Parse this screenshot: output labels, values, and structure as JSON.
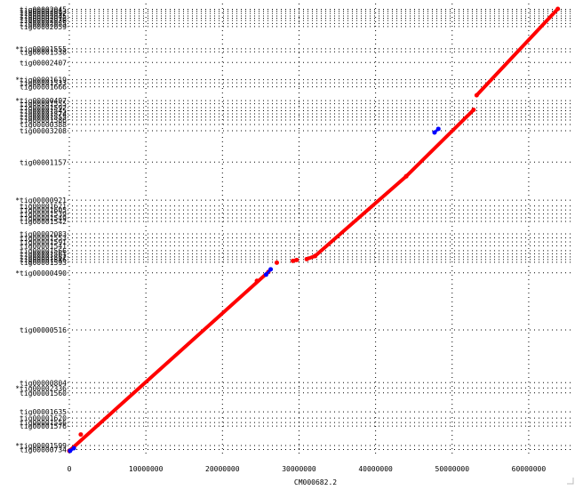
{
  "chart_data": {
    "type": "scatter",
    "title": "",
    "xlabel": "CM000682.2",
    "ylabel": "",
    "grid": true,
    "xlim": [
      0,
      65000000
    ],
    "x_ticks": [
      0,
      10000000,
      20000000,
      30000000,
      40000000,
      50000000,
      60000000
    ],
    "x_tick_labels": [
      "0",
      "10000000",
      "20000000",
      "30000000",
      "40000000",
      "50000000",
      "60000000"
    ],
    "y_contigs": [
      {
        "label": "tig00002045",
        "pos": 0.997
      },
      {
        "label": "tig00002013",
        "pos": 0.993
      },
      {
        "label": "tig00002092",
        "pos": 0.988
      },
      {
        "label": "tig00002045",
        "pos": 0.982
      },
      {
        "label": "tig00002076",
        "pos": 0.977
      },
      {
        "label": "tig00002036",
        "pos": 0.972
      },
      {
        "label": "tig00002055",
        "pos": 0.965
      },
      {
        "label": "tig00002059",
        "pos": 0.958
      },
      {
        "label": "*tig00001555",
        "pos": 0.908
      },
      {
        "label": "tig00001538",
        "pos": 0.901
      },
      {
        "label": "tig00002407",
        "pos": 0.877
      },
      {
        "label": "*tig00001619",
        "pos": 0.838
      },
      {
        "label": "tig00001533",
        "pos": 0.831
      },
      {
        "label": "tig00001666",
        "pos": 0.822
      },
      {
        "label": "*tig00000497",
        "pos": 0.791
      },
      {
        "label": "tig00001555",
        "pos": 0.784
      },
      {
        "label": "tig00001592",
        "pos": 0.775
      },
      {
        "label": "tig00001545",
        "pos": 0.768
      },
      {
        "label": "tig00001574",
        "pos": 0.761
      },
      {
        "label": "tig00001555",
        "pos": 0.754
      },
      {
        "label": "tig00001586",
        "pos": 0.747
      },
      {
        "label": "tig00000388",
        "pos": 0.737
      },
      {
        "label": "tig00003208",
        "pos": 0.723
      },
      {
        "label": "tig00001157",
        "pos": 0.652
      },
      {
        "label": "*tig00000921",
        "pos": 0.566
      },
      {
        "label": "tig00001621",
        "pos": 0.553
      },
      {
        "label": "tig00001605",
        "pos": 0.544
      },
      {
        "label": "tig00001539",
        "pos": 0.535
      },
      {
        "label": "tig00001549",
        "pos": 0.526
      },
      {
        "label": "tig00001542",
        "pos": 0.518
      },
      {
        "label": "tig00002083",
        "pos": 0.49
      },
      {
        "label": "tig00001553",
        "pos": 0.481
      },
      {
        "label": "tig00001591",
        "pos": 0.472
      },
      {
        "label": "tig00001541",
        "pos": 0.463
      },
      {
        "label": "tig00001566",
        "pos": 0.452
      },
      {
        "label": "tig00001561",
        "pos": 0.445
      },
      {
        "label": "tig00001567",
        "pos": 0.438
      },
      {
        "label": "tig00001546",
        "pos": 0.432
      },
      {
        "label": "tig00001593",
        "pos": 0.426
      },
      {
        "label": "*tig00000490",
        "pos": 0.402
      },
      {
        "label": "tig00000516",
        "pos": 0.273
      },
      {
        "label": "tig00000804",
        "pos": 0.154
      },
      {
        "label": "*tig00002336",
        "pos": 0.142
      },
      {
        "label": "tig00001560",
        "pos": 0.131
      },
      {
        "label": "tig00001635",
        "pos": 0.088
      },
      {
        "label": "tig00001620",
        "pos": 0.074
      },
      {
        "label": "tig00001556",
        "pos": 0.064
      },
      {
        "label": "tig00001576",
        "pos": 0.056
      },
      {
        "label": "*tig00001599",
        "pos": 0.012
      },
      {
        "label": "tig00000734",
        "pos": 0.003
      }
    ],
    "series": [
      {
        "color": "#ff0000",
        "segments": [
          [
            [
              0,
              0.0
            ],
            [
              26000000,
              0.404
            ]
          ],
          [
            [
              29200000,
              0.429
            ],
            [
              29700000,
              0.431
            ]
          ],
          [
            [
              31000000,
              0.433
            ],
            [
              32100000,
              0.44
            ]
          ],
          [
            [
              32100000,
              0.44
            ],
            [
              44000000,
              0.62
            ]
          ],
          [
            [
              44000000,
              0.62
            ],
            [
              52800000,
              0.77
            ]
          ],
          [
            [
              53200000,
              0.803
            ],
            [
              63800000,
              0.998
            ]
          ]
        ]
      },
      {
        "color": "#0000ff",
        "segments": [
          [
            [
              100000,
              0.0
            ],
            [
              600000,
              0.006
            ]
          ],
          [
            [
              25700000,
              0.398
            ],
            [
              26300000,
              0.41
            ]
          ],
          [
            [
              47700000,
              0.719
            ],
            [
              48200000,
              0.727
            ]
          ]
        ]
      }
    ],
    "outliers": [
      {
        "x": 1500000,
        "y": 0.037
      },
      {
        "x": 24500000,
        "y": 0.384
      },
      {
        "x": 27100000,
        "y": 0.425
      }
    ]
  }
}
